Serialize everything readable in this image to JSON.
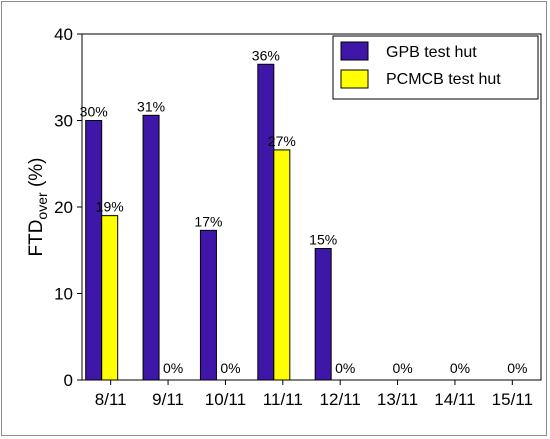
{
  "chart_data": {
    "type": "bar",
    "categories": [
      "8/11",
      "9/11",
      "10/11",
      "11/11",
      "12/11",
      "13/11",
      "14/11",
      "15/11"
    ],
    "series": [
      {
        "name": "GPB test hut",
        "color": "#3f17a8",
        "values": [
          30,
          30.6,
          17.3,
          36.5,
          15.2,
          null,
          null,
          null
        ],
        "labels": [
          "30%",
          "31%",
          "17%",
          "36%",
          "15%",
          "",
          "",
          ""
        ]
      },
      {
        "name": "PCMCB test hut",
        "color": "#ffff00",
        "values": [
          19,
          0,
          0,
          26.6,
          0,
          0,
          0,
          0
        ],
        "labels": [
          "19%",
          "0%",
          "0%",
          "27%",
          "0%",
          "0%",
          "0%",
          "0%"
        ]
      }
    ],
    "ylabel": "FTD",
    "ylabel_subscript": "over",
    "ylabel_suffix": " (%)",
    "ylim": [
      0,
      40
    ],
    "yticks": [
      0,
      10,
      20,
      30,
      40
    ],
    "legend_position": "top-right"
  }
}
